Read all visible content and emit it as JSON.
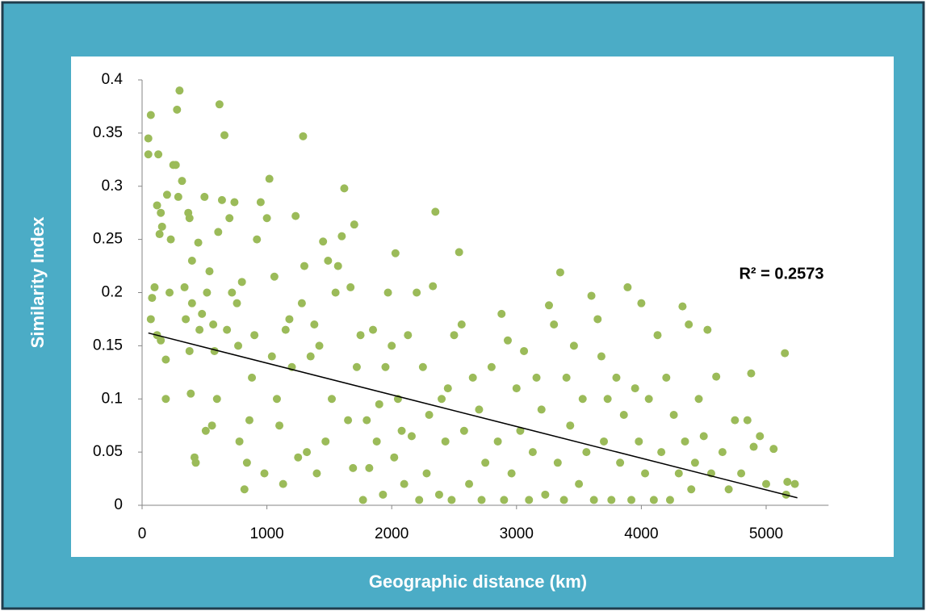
{
  "chart_data": {
    "type": "scatter",
    "y_label": "Similarity Index",
    "x_label": "Geographic distance (km)",
    "annotation": "R² = 0.2573",
    "xlim": [
      0,
      5500
    ],
    "xticks": [
      0,
      1000,
      2000,
      3000,
      4000,
      5000
    ],
    "ylim": [
      0,
      0.4
    ],
    "yticks": [
      0,
      0.05,
      0.1,
      0.15,
      0.2,
      0.25,
      0.3,
      0.35,
      0.4
    ],
    "trendline": {
      "color": "#000000",
      "x": [
        50,
        5250
      ],
      "values": [
        0.162,
        0.007
      ]
    },
    "series": [
      {
        "color": "#9bbb59",
        "x": [
          50,
          50,
          70,
          80,
          70,
          100,
          130,
          120,
          150,
          140,
          160,
          120,
          150,
          190,
          190,
          200,
          220,
          230,
          250,
          270,
          280,
          290,
          300,
          320,
          340,
          350,
          370,
          380,
          380,
          390,
          400,
          400,
          420,
          430,
          450,
          460,
          480,
          500,
          510,
          520,
          540,
          560,
          570,
          580,
          600,
          610,
          620,
          640,
          660,
          680,
          700,
          720,
          740,
          760,
          770,
          780,
          800,
          820,
          840,
          860,
          880,
          900,
          920,
          950,
          980,
          1000,
          1020,
          1040,
          1060,
          1080,
          1100,
          1130,
          1150,
          1180,
          1200,
          1230,
          1250,
          1280,
          1290,
          1300,
          1320,
          1350,
          1380,
          1400,
          1420,
          1450,
          1470,
          1490,
          1520,
          1550,
          1570,
          1600,
          1620,
          1650,
          1670,
          1690,
          1700,
          1720,
          1750,
          1770,
          1800,
          1820,
          1850,
          1880,
          1900,
          1930,
          1950,
          1970,
          2000,
          2020,
          2030,
          2050,
          2080,
          2100,
          2130,
          2160,
          2200,
          2220,
          2250,
          2280,
          2300,
          2330,
          2350,
          2380,
          2400,
          2430,
          2450,
          2480,
          2500,
          2540,
          2560,
          2580,
          2620,
          2650,
          2700,
          2720,
          2750,
          2800,
          2850,
          2880,
          2900,
          2930,
          2960,
          3000,
          3030,
          3060,
          3100,
          3130,
          3160,
          3200,
          3230,
          3260,
          3300,
          3330,
          3350,
          3380,
          3400,
          3430,
          3460,
          3500,
          3530,
          3560,
          3600,
          3620,
          3650,
          3680,
          3700,
          3730,
          3760,
          3800,
          3830,
          3860,
          3890,
          3920,
          3950,
          3980,
          4000,
          4030,
          4060,
          4100,
          4130,
          4160,
          4200,
          4230,
          4260,
          4300,
          4330,
          4350,
          4380,
          4400,
          4430,
          4460,
          4500,
          4530,
          4560,
          4600,
          4650,
          4700,
          4750,
          4800,
          4850,
          4880,
          4900,
          4950,
          5000,
          5060,
          5150,
          5160,
          5170,
          5230
        ],
        "values": [
          0.345,
          0.33,
          0.367,
          0.195,
          0.175,
          0.205,
          0.33,
          0.282,
          0.275,
          0.255,
          0.262,
          0.16,
          0.155,
          0.137,
          0.1,
          0.292,
          0.2,
          0.25,
          0.32,
          0.32,
          0.372,
          0.29,
          0.39,
          0.305,
          0.205,
          0.175,
          0.275,
          0.27,
          0.145,
          0.105,
          0.23,
          0.19,
          0.045,
          0.04,
          0.247,
          0.165,
          0.18,
          0.29,
          0.07,
          0.2,
          0.22,
          0.075,
          0.17,
          0.145,
          0.1,
          0.257,
          0.377,
          0.287,
          0.348,
          0.165,
          0.27,
          0.2,
          0.285,
          0.19,
          0.15,
          0.06,
          0.21,
          0.015,
          0.04,
          0.08,
          0.12,
          0.16,
          0.25,
          0.285,
          0.03,
          0.27,
          0.307,
          0.14,
          0.215,
          0.1,
          0.075,
          0.02,
          0.165,
          0.175,
          0.13,
          0.272,
          0.045,
          0.19,
          0.347,
          0.225,
          0.05,
          0.14,
          0.17,
          0.03,
          0.15,
          0.248,
          0.06,
          0.23,
          0.1,
          0.2,
          0.225,
          0.253,
          0.298,
          0.08,
          0.205,
          0.035,
          0.264,
          0.13,
          0.16,
          0.005,
          0.08,
          0.035,
          0.165,
          0.06,
          0.095,
          0.01,
          0.13,
          0.2,
          0.15,
          0.045,
          0.237,
          0.1,
          0.07,
          0.02,
          0.16,
          0.065,
          0.2,
          0.005,
          0.13,
          0.03,
          0.085,
          0.206,
          0.276,
          0.01,
          0.1,
          0.06,
          0.11,
          0.005,
          0.16,
          0.238,
          0.17,
          0.07,
          0.02,
          0.12,
          0.09,
          0.005,
          0.04,
          0.13,
          0.06,
          0.18,
          0.005,
          0.155,
          0.03,
          0.11,
          0.07,
          0.145,
          0.005,
          0.05,
          0.12,
          0.09,
          0.01,
          0.188,
          0.17,
          0.04,
          0.219,
          0.005,
          0.12,
          0.075,
          0.15,
          0.02,
          0.1,
          0.05,
          0.197,
          0.005,
          0.175,
          0.14,
          0.06,
          0.1,
          0.005,
          0.12,
          0.04,
          0.085,
          0.205,
          0.005,
          0.11,
          0.06,
          0.19,
          0.03,
          0.1,
          0.005,
          0.16,
          0.05,
          0.12,
          0.005,
          0.085,
          0.03,
          0.187,
          0.06,
          0.17,
          0.015,
          0.04,
          0.1,
          0.065,
          0.165,
          0.03,
          0.121,
          0.05,
          0.015,
          0.08,
          0.03,
          0.08,
          0.124,
          0.055,
          0.065,
          0.02,
          0.053,
          0.143,
          0.01,
          0.022,
          0.02
        ]
      }
    ]
  }
}
